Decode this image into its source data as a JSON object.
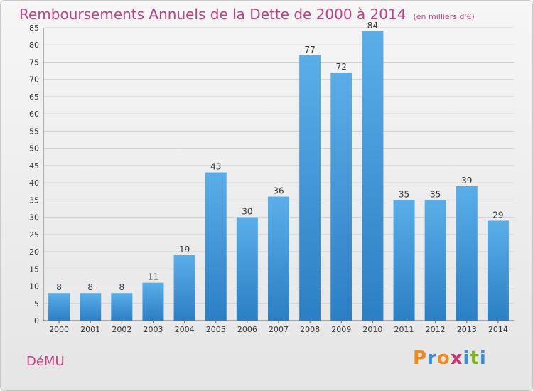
{
  "header": {
    "title": "Remboursements Annuels de la Dette de 2000 à 2014",
    "subtitle": "(en milliers d'€)"
  },
  "footer": {
    "commune": "DéMU",
    "logo_letters": [
      "P",
      "r",
      "o",
      "x",
      "i",
      "t",
      "i"
    ],
    "logo_colors": [
      "#f08a1c",
      "#3b8fd4",
      "#f08a1c",
      "#c8356f",
      "#3b8fd4",
      "#7ab51d",
      "#3b8fd4"
    ]
  },
  "colors": {
    "bar_light": "#5aaee8",
    "bar_dark": "#2b7fc4",
    "title": "#c2407f",
    "grid": "#cfcfcf",
    "axis_text": "#333333"
  },
  "chart_data": {
    "type": "bar",
    "categories": [
      "2000",
      "2001",
      "2002",
      "2003",
      "2004",
      "2005",
      "2006",
      "2007",
      "2008",
      "2009",
      "2010",
      "2011",
      "2012",
      "2013",
      "2014"
    ],
    "values": [
      8,
      8,
      8,
      11,
      19,
      43,
      30,
      36,
      77,
      72,
      84,
      35,
      35,
      39,
      29
    ],
    "data_labels": [
      "8",
      "8",
      "8",
      "11",
      "19",
      "43",
      "30",
      "36",
      "77",
      "72",
      "84",
      "35",
      "35",
      "39",
      "29"
    ],
    "ylim": [
      0,
      85
    ],
    "yticks": [
      0,
      5,
      10,
      15,
      20,
      25,
      30,
      35,
      40,
      45,
      50,
      55,
      60,
      65,
      70,
      75,
      80,
      85
    ],
    "ytick_labels": [
      "0",
      "5",
      "10",
      "15",
      "20",
      "25",
      "30",
      "35",
      "40",
      "45",
      "50",
      "55",
      "60",
      "65",
      "70",
      "75",
      "80",
      "85"
    ],
    "grid": true,
    "title": "Remboursements Annuels de la Dette de 2000 à 2014",
    "xlabel": "",
    "ylabel": ""
  }
}
